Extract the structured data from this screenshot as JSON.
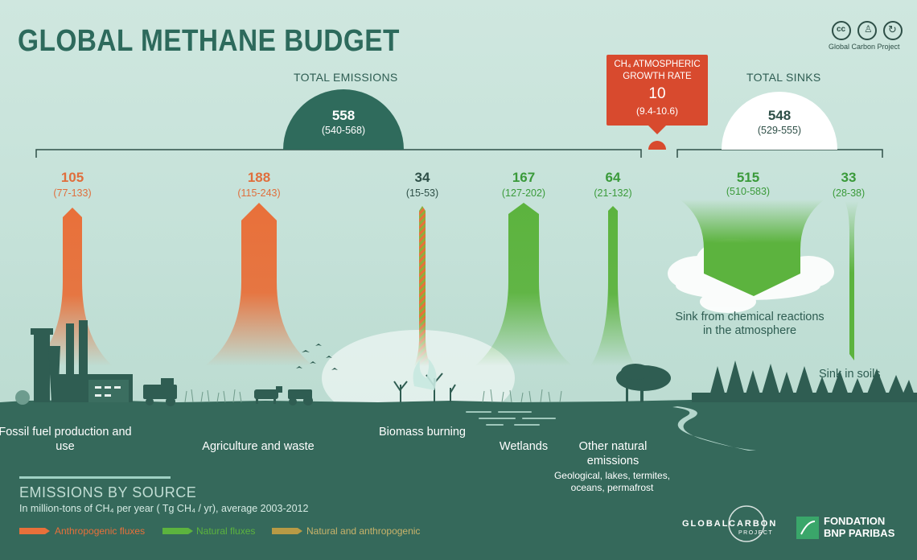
{
  "title": "GLOBAL METHANE BUDGET",
  "credit": "Global Carbon Project",
  "total_emissions": {
    "label": "TOTAL EMISSIONS",
    "value": "558",
    "range": "(540-568)"
  },
  "total_sinks": {
    "label": "TOTAL SINKS",
    "value": "548",
    "range": "(529-555)"
  },
  "growth": {
    "line1": "CH₄ ATMOSPHERIC",
    "line2": "GROWTH RATE",
    "value": "10",
    "range": "(9.4-10.6)"
  },
  "sources": [
    {
      "value": "105",
      "range": "(77-133)",
      "label": "Fossil fuel production and use",
      "kind": "anthropogenic"
    },
    {
      "value": "188",
      "range": "(115-243)",
      "label": "Agriculture and waste",
      "kind": "anthropogenic"
    },
    {
      "value": "34",
      "range": "(15-53)",
      "label": "Biomass burning",
      "kind": "mixed"
    },
    {
      "value": "167",
      "range": "(127-202)",
      "label": "Wetlands",
      "kind": "natural"
    },
    {
      "value": "64",
      "range": "(21-132)",
      "label": "Other natural emissions",
      "sublabel": "Geological, lakes, termites, oceans, permafrost",
      "kind": "natural"
    }
  ],
  "sinks": [
    {
      "value": "515",
      "range": "(510-583)",
      "label": "Sink from chemical reactions in the atmosphere"
    },
    {
      "value": "33",
      "range": "(28-38)",
      "label": "Sink in soils"
    }
  ],
  "footer": {
    "heading": "EMISSIONS BY SOURCE",
    "units": "In million-tons of CH₄ per year ( Tg CH₄ / yr), average 2003-2012",
    "legend": [
      {
        "label": "Anthropogenic fluxes",
        "color": "#e8703a"
      },
      {
        "label": "Natural fluxes",
        "color": "#5cb33e"
      },
      {
        "label": "Natural and anthropogenic",
        "color": "#b89a45"
      }
    ],
    "logo_gcp": {
      "line1": "GLOBAL",
      "line2": "CARBON",
      "line3": "PROJECT"
    },
    "logo_bnp": {
      "line1": "FONDATION",
      "line2": "BNP PARIBAS"
    }
  },
  "colors": {
    "dark_green": "#2f6b5c",
    "growth_red": "#d84a2e",
    "anthropogenic": "#e8703a",
    "natural": "#5cb33e"
  },
  "chart_data": {
    "type": "bar",
    "categories": [
      "Fossil fuel production and use",
      "Agriculture and waste",
      "Biomass burning",
      "Wetlands",
      "Other natural emissions",
      "Sink from chemical reactions in the atmosphere",
      "Sink in soils"
    ],
    "values": [
      105,
      188,
      34,
      167,
      64,
      515,
      33
    ],
    "ranges": [
      [
        77,
        133
      ],
      [
        115,
        243
      ],
      [
        15,
        53
      ],
      [
        127,
        202
      ],
      [
        21,
        132
      ],
      [
        510,
        583
      ],
      [
        28,
        38
      ]
    ],
    "totals": {
      "emissions": 558,
      "sinks": 548,
      "growth_rate": 10
    }
  }
}
